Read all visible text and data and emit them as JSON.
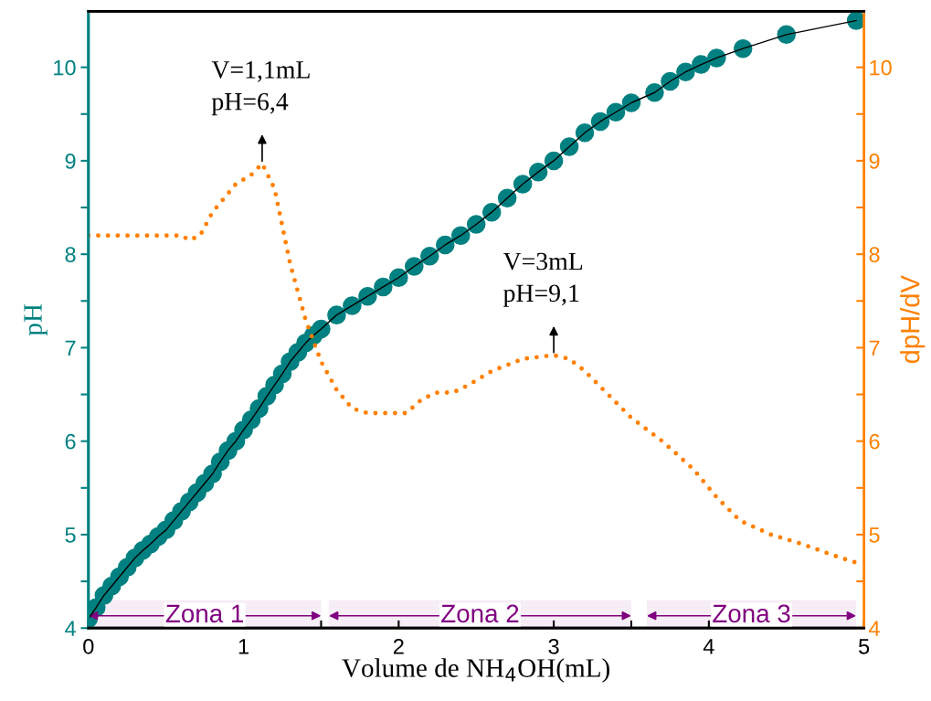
{
  "chart_data": {
    "type": "line",
    "xlabel": "Volume de NH$_{4}$OH(mL)",
    "ylabel": "pH",
    "y2label": "dpH/dV",
    "xlim": [
      0,
      5
    ],
    "xticks": [
      0,
      {
        "value": 0.5,
        "label": null
      },
      1,
      {
        "value": 1.5,
        "label": null
      },
      2,
      {
        "value": 2.5,
        "label": null
      },
      3,
      {
        "value": 3.5,
        "label": null
      },
      4,
      {
        "value": 4.5,
        "label": null
      },
      5
    ],
    "ylim": [
      4,
      10.6
    ],
    "yticks": [
      4,
      {
        "value": 4.5,
        "label": null
      },
      5,
      {
        "value": 5.5,
        "label": null
      },
      6,
      {
        "value": 6.5,
        "label": null
      },
      7,
      {
        "value": 7.5,
        "label": null
      },
      8,
      {
        "value": 8.5,
        "label": null
      },
      9,
      {
        "value": 9.5,
        "label": null
      },
      10
    ],
    "y2lim": [
      4,
      10.6
    ],
    "y2ticks": [
      4,
      {
        "value": 4.5,
        "label": null
      },
      5,
      {
        "value": 5.5,
        "label": null
      },
      6,
      {
        "value": 6.5,
        "label": null
      },
      7,
      {
        "value": 7.5,
        "label": null
      },
      8,
      {
        "value": 8.5,
        "label": null
      },
      9,
      {
        "value": 9.5,
        "label": null
      },
      10
    ],
    "grid": false,
    "series": [
      {
        "color": "#008080",
        "marker": "circle",
        "line_style": "solid",
        "x": [
          0,
          0.05,
          0.1,
          0.15,
          0.2,
          0.25,
          0.3,
          0.35,
          0.4,
          0.45,
          0.5,
          0.55,
          0.6,
          0.65,
          0.7,
          0.75,
          0.8,
          0.85,
          0.9,
          0.95,
          1.0,
          1.05,
          1.1,
          1.15,
          1.2,
          1.25,
          1.3,
          1.35,
          1.4,
          1.45,
          1.5,
          1.6,
          1.7,
          1.8,
          1.9,
          2.0,
          2.1,
          2.2,
          2.3,
          2.4,
          2.5,
          2.6,
          2.7,
          2.8,
          2.9,
          3.0,
          3.1,
          3.2,
          3.3,
          3.4,
          3.5,
          3.65,
          3.75,
          3.85,
          3.95,
          4.05,
          4.22,
          4.5,
          4.95
        ],
        "values": [
          4.1,
          4.22,
          4.35,
          4.45,
          4.55,
          4.65,
          4.75,
          4.83,
          4.9,
          4.98,
          5.05,
          5.15,
          5.25,
          5.35,
          5.45,
          5.55,
          5.65,
          5.78,
          5.9,
          6.0,
          6.12,
          6.23,
          6.35,
          6.48,
          6.6,
          6.72,
          6.85,
          6.95,
          7.05,
          7.13,
          7.2,
          7.35,
          7.45,
          7.55,
          7.65,
          7.75,
          7.87,
          7.98,
          8.1,
          8.2,
          8.32,
          8.45,
          8.6,
          8.75,
          8.88,
          9.0,
          9.15,
          9.3,
          9.42,
          9.52,
          9.62,
          9.73,
          9.85,
          9.95,
          10.03,
          10.1,
          10.2,
          10.35,
          10.5
        ]
      },
      {
        "color": "#ff8000",
        "axis": "y2",
        "marker": "none",
        "line_style": "dotted",
        "x": [
          0,
          0.3,
          0.6,
          0.65,
          0.72,
          0.8,
          0.95,
          1.05,
          1.12,
          1.2,
          1.3,
          1.4,
          1.5,
          1.6,
          1.7,
          1.8,
          1.9,
          2.05,
          2.15,
          2.25,
          2.35,
          2.45,
          2.6,
          2.8,
          3.0,
          3.1,
          3.2,
          3.35,
          3.5,
          3.7,
          3.9,
          4.05,
          4.2,
          4.4,
          4.6,
          4.8,
          4.95
        ],
        "values": [
          8.2,
          8.2,
          8.2,
          8.15,
          8.2,
          8.45,
          8.75,
          8.85,
          8.97,
          8.7,
          7.9,
          7.3,
          6.85,
          6.55,
          6.35,
          6.3,
          6.3,
          6.3,
          6.45,
          6.52,
          6.52,
          6.6,
          6.75,
          6.88,
          6.92,
          6.88,
          6.75,
          6.5,
          6.25,
          6.0,
          5.7,
          5.4,
          5.15,
          5.0,
          4.9,
          4.78,
          4.7
        ]
      }
    ],
    "annotations": [
      {
        "text": "V=1,1mL\npH=6,4",
        "x": 1.12,
        "y": 8.97
      },
      {
        "text": "V=3mL\npH=9,1",
        "x": 3.0,
        "y": 6.92
      }
    ],
    "bands": [
      {
        "axis": "x",
        "from": 0,
        "to": 1.5,
        "label": "Zona 1",
        "color": "#800080"
      },
      {
        "axis": "x",
        "from": 1.55,
        "to": 3.5,
        "label": "Zona 2",
        "color": "#800080"
      },
      {
        "axis": "x",
        "from": 3.6,
        "to": 4.95,
        "label": "Zona 3",
        "color": "#800080"
      }
    ]
  }
}
